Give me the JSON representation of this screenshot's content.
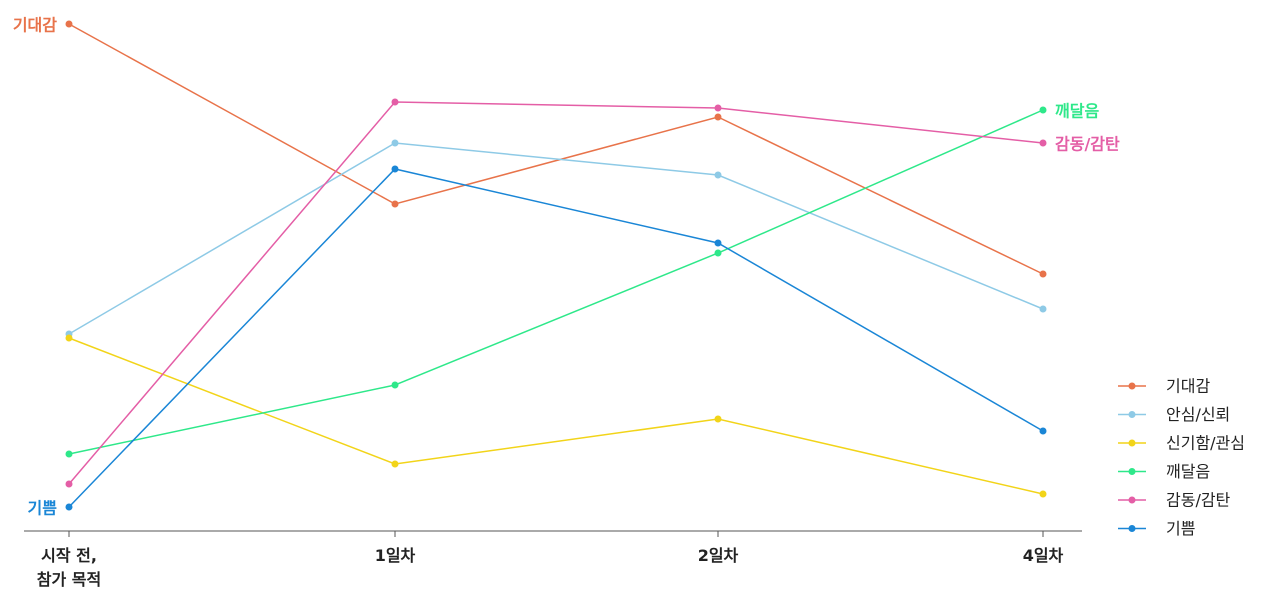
{
  "chart_data": {
    "type": "line",
    "categories": [
      "시작 전,\n참가 목적",
      "1일차",
      "2일차",
      "4일차"
    ],
    "series": [
      {
        "name": "기대감",
        "color": "#e8734a",
        "values": [
          101.4,
          65.4,
          82.8,
          51.4
        ]
      },
      {
        "name": "안심/신뢰",
        "color": "#8ecae6",
        "values": [
          39.4,
          77.6,
          71.2,
          44.4
        ]
      },
      {
        "name": "신기함/관심",
        "color": "#f2d419",
        "values": [
          38.6,
          13.4,
          22.4,
          7.4
        ]
      },
      {
        "name": "깨달음",
        "color": "#2ee88a",
        "values": [
          15.4,
          29.2,
          55.6,
          84.2
        ]
      },
      {
        "name": "감동/감탄",
        "color": "#e45ea6",
        "values": [
          9.4,
          85.8,
          84.6,
          77.6
        ]
      },
      {
        "name": "기쁨",
        "color": "#1a86d6",
        "values": [
          4.8,
          72.4,
          57.6,
          20
        ]
      }
    ],
    "legend": "right"
  }
}
